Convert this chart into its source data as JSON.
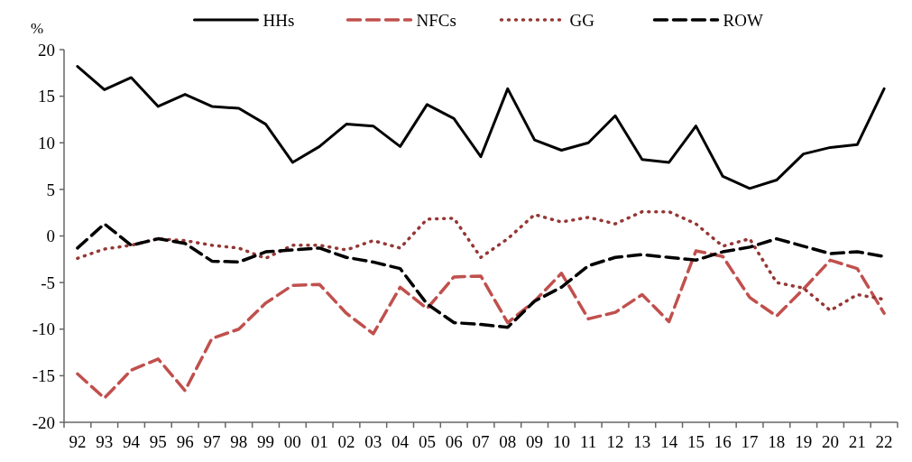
{
  "chart_data": {
    "type": "line",
    "ylabel": "%",
    "categories": [
      "92",
      "93",
      "94",
      "95",
      "96",
      "97",
      "98",
      "99",
      "00",
      "01",
      "02",
      "03",
      "04",
      "05",
      "06",
      "07",
      "08",
      "09",
      "10",
      "11",
      "12",
      "13",
      "14",
      "15",
      "16",
      "17",
      "18",
      "19",
      "20",
      "21",
      "22"
    ],
    "series": [
      {
        "name": "HHs",
        "color": "#000000",
        "line_style": "solid",
        "values": [
          18.2,
          15.7,
          17.0,
          13.9,
          15.2,
          13.9,
          13.7,
          12.0,
          7.9,
          9.6,
          12.0,
          11.8,
          9.6,
          14.1,
          12.6,
          8.5,
          15.8,
          10.3,
          9.2,
          10.0,
          12.9,
          8.2,
          7.9,
          11.8,
          6.4,
          5.1,
          6.0,
          8.8,
          9.5,
          9.8,
          15.8
        ]
      },
      {
        "name": "NFCs",
        "color": "#c0504d",
        "line_style": "dashed",
        "values": [
          -14.8,
          -17.4,
          -14.4,
          -13.2,
          -16.6,
          -11.0,
          -10.0,
          -7.2,
          -5.3,
          -5.2,
          -8.3,
          -10.5,
          -5.5,
          -7.8,
          -4.4,
          -4.3,
          -9.3,
          -7.0,
          -4.0,
          -8.9,
          -8.2,
          -6.3,
          -9.2,
          -1.6,
          -2.2,
          -6.6,
          -8.6,
          -5.7,
          -2.6,
          -3.5,
          -8.3
        ]
      },
      {
        "name": "GG",
        "color": "#953735",
        "line_style": "dotted",
        "values": [
          -2.4,
          -1.4,
          -1.0,
          -0.3,
          -0.5,
          -1.0,
          -1.3,
          -2.4,
          -1.0,
          -1.0,
          -1.5,
          -0.5,
          -1.3,
          1.8,
          1.9,
          -2.3,
          -0.3,
          2.3,
          1.5,
          2.0,
          1.3,
          2.6,
          2.6,
          1.3,
          -1.1,
          -0.3,
          -5.0,
          -5.6,
          -8.0,
          -6.3,
          -6.8
        ]
      },
      {
        "name": "ROW",
        "color": "#000000",
        "line_style": "dashed",
        "values": [
          -1.3,
          1.3,
          -1.0,
          -0.3,
          -0.8,
          -2.7,
          -2.8,
          -1.7,
          -1.5,
          -1.3,
          -2.3,
          -2.8,
          -3.5,
          -7.3,
          -9.3,
          -9.5,
          -9.8,
          -7.0,
          -5.5,
          -3.2,
          -2.3,
          -2.0,
          -2.3,
          -2.6,
          -1.7,
          -1.2,
          -0.3,
          -1.1,
          -1.9,
          -1.7,
          -2.2
        ]
      }
    ],
    "ylim": [
      -20,
      20
    ],
    "yticks": [
      -20,
      -15,
      -10,
      -5,
      0,
      5,
      10,
      15,
      20
    ],
    "grid": false,
    "legend": "top"
  }
}
